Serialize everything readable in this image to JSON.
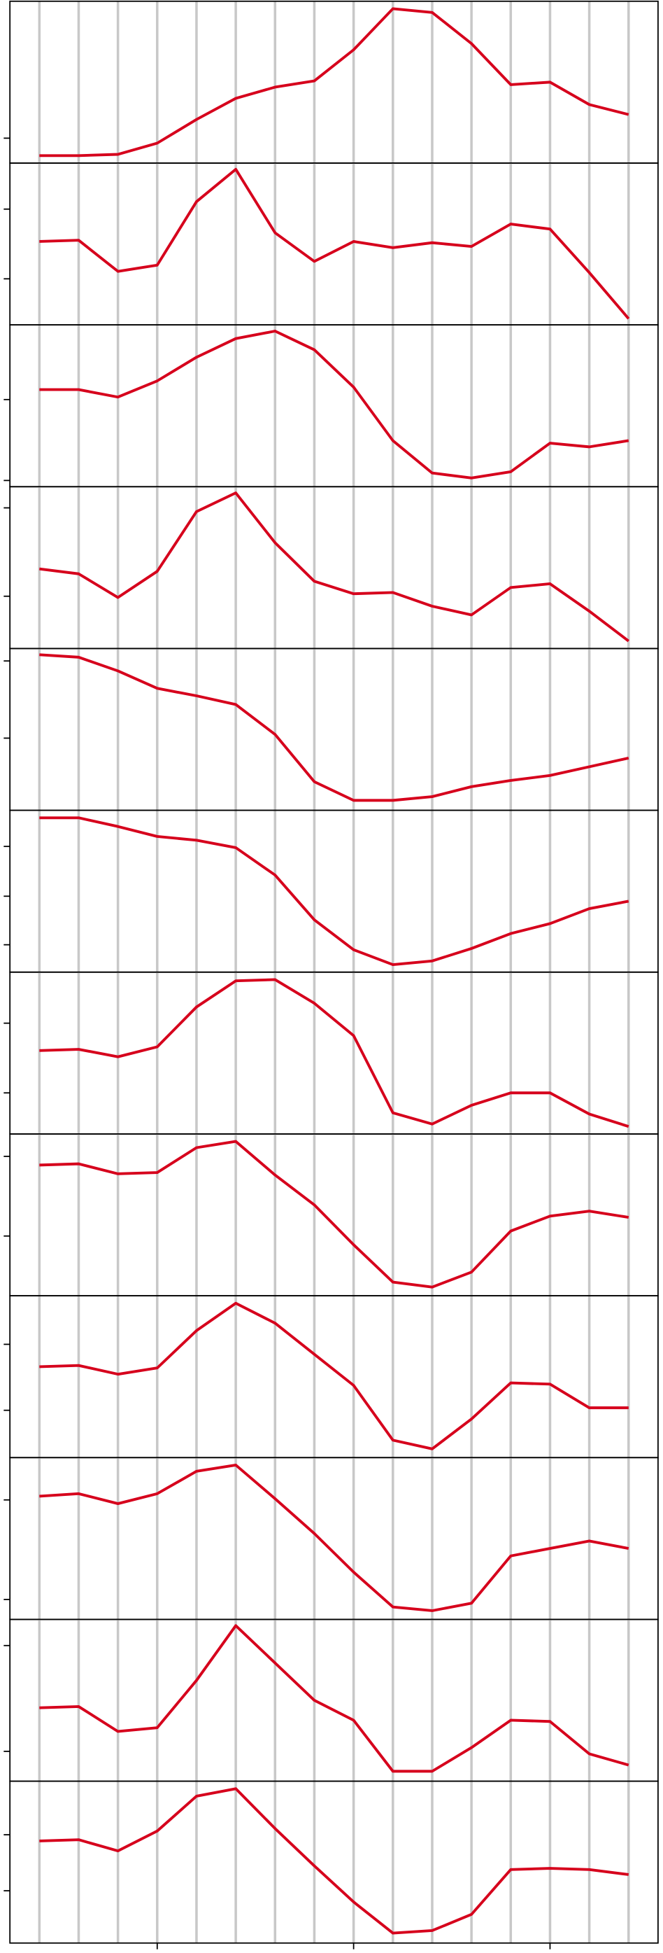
{
  "chart_data": [
    {
      "type": "line",
      "x": [
        0,
        1,
        2,
        3,
        4,
        5,
        6,
        7,
        8,
        9,
        10,
        11,
        12,
        13,
        14,
        15
      ],
      "values": [
        6,
        6,
        7,
        16,
        35,
        52,
        61,
        66,
        91,
        124,
        121,
        96,
        63,
        65,
        47,
        39
      ],
      "color": "#d6001c",
      "grid_color": "#c8c8c8",
      "xlim": [
        -0.75,
        15.75
      ],
      "ylim": [
        0,
        130
      ],
      "yticks": [
        20
      ]
    },
    {
      "type": "line",
      "x": [
        0,
        1,
        2,
        3,
        4,
        5,
        6,
        7,
        8,
        9,
        10,
        11,
        12,
        13,
        14,
        15
      ],
      "values": [
        67,
        68,
        43,
        48,
        99,
        125,
        74,
        51,
        67,
        62,
        66,
        63,
        81,
        77,
        42,
        5
      ],
      "color": "#d6001c",
      "grid_color": "#c8c8c8",
      "xlim": [
        -0.75,
        15.75
      ],
      "ylim": [
        0,
        130
      ],
      "yticks": [
        37,
        93
      ]
    },
    {
      "type": "line",
      "x": [
        0,
        1,
        2,
        3,
        4,
        5,
        6,
        7,
        8,
        9,
        10,
        11,
        12,
        13,
        14,
        15
      ],
      "values": [
        78,
        78,
        72,
        85,
        104,
        119,
        125,
        110,
        80,
        37,
        11,
        7,
        12,
        35,
        32,
        37
      ],
      "color": "#d6001c",
      "grid_color": "#c8c8c8",
      "xlim": [
        -0.75,
        15.75
      ],
      "ylim": [
        0,
        130
      ],
      "yticks": [
        5,
        70
      ]
    },
    {
      "type": "line",
      "x": [
        0,
        1,
        2,
        3,
        4,
        5,
        6,
        7,
        8,
        9,
        10,
        11,
        12,
        13,
        14,
        15
      ],
      "values": [
        64,
        60,
        41,
        62,
        110,
        125,
        85,
        54,
        44,
        45,
        34,
        27,
        49,
        52,
        30,
        6
      ],
      "color": "#d6001c",
      "grid_color": "#c8c8c8",
      "xlim": [
        -0.75,
        15.75
      ],
      "ylim": [
        0,
        130
      ],
      "yticks": [
        42,
        113
      ]
    },
    {
      "type": "line",
      "x": [
        0,
        1,
        2,
        3,
        4,
        5,
        6,
        7,
        8,
        9,
        10,
        11,
        12,
        13,
        14,
        15
      ],
      "values": [
        125,
        123,
        112,
        98,
        92,
        85,
        61,
        23,
        8,
        8,
        11,
        19,
        24,
        28,
        35,
        42
      ],
      "color": "#d6001c",
      "grid_color": "#c8c8c8",
      "xlim": [
        -0.75,
        15.75
      ],
      "ylim": [
        0,
        130
      ],
      "yticks": [
        58,
        120
      ]
    },
    {
      "type": "line",
      "x": [
        0,
        1,
        2,
        3,
        4,
        5,
        6,
        7,
        8,
        9,
        10,
        11,
        12,
        13,
        14,
        15
      ],
      "values": [
        124,
        124,
        117,
        109,
        106,
        100,
        78,
        42,
        18,
        6,
        9,
        19,
        31,
        39,
        51,
        57
      ],
      "color": "#d6001c",
      "grid_color": "#c8c8c8",
      "xlim": [
        -0.75,
        15.75
      ],
      "ylim": [
        0,
        130
      ],
      "yticks": [
        22,
        61,
        101
      ]
    },
    {
      "type": "line",
      "x": [
        0,
        1,
        2,
        3,
        4,
        5,
        6,
        7,
        8,
        9,
        10,
        11,
        12,
        13,
        14,
        15
      ],
      "values": [
        67,
        68,
        62,
        70,
        102,
        123,
        124,
        105,
        79,
        17,
        8,
        23,
        33,
        33,
        16,
        6
      ],
      "color": "#d6001c",
      "grid_color": "#c8c8c8",
      "xlim": [
        -0.75,
        15.75
      ],
      "ylim": [
        0,
        130
      ],
      "yticks": [
        33,
        89
      ]
    },
    {
      "type": "line",
      "x": [
        0,
        1,
        2,
        3,
        4,
        5,
        6,
        7,
        8,
        9,
        10,
        11,
        12,
        13,
        14,
        15
      ],
      "values": [
        105,
        106,
        98,
        99,
        119,
        124,
        97,
        73,
        41,
        11,
        7,
        19,
        52,
        64,
        68,
        63
      ],
      "color": "#d6001c",
      "grid_color": "#c8c8c8",
      "xlim": [
        -0.75,
        15.75
      ],
      "ylim": [
        0,
        130
      ],
      "yticks": [
        48,
        112
      ]
    },
    {
      "type": "line",
      "x": [
        0,
        1,
        2,
        3,
        4,
        5,
        6,
        7,
        8,
        9,
        10,
        11,
        12,
        13,
        14,
        15
      ],
      "values": [
        73,
        74,
        67,
        72,
        102,
        124,
        108,
        83,
        58,
        14,
        7,
        31,
        60,
        59,
        40,
        40
      ],
      "color": "#d6001c",
      "grid_color": "#c8c8c8",
      "xlim": [
        -0.75,
        15.75
      ],
      "ylim": [
        0,
        130
      ],
      "yticks": [
        38,
        91
      ]
    },
    {
      "type": "line",
      "x": [
        0,
        1,
        2,
        3,
        4,
        5,
        6,
        7,
        8,
        9,
        10,
        11,
        12,
        13,
        14,
        15
      ],
      "values": [
        99,
        101,
        93,
        101,
        119,
        124,
        97,
        69,
        38,
        10,
        7,
        13,
        51,
        57,
        63,
        57
      ],
      "color": "#d6001c",
      "grid_color": "#c8c8c8",
      "xlim": [
        -0.75,
        15.75
      ],
      "ylim": [
        0,
        130
      ],
      "yticks": [
        16,
        96
      ]
    },
    {
      "type": "line",
      "x": [
        0,
        1,
        2,
        3,
        4,
        5,
        6,
        7,
        8,
        9,
        10,
        11,
        12,
        13,
        14,
        15
      ],
      "values": [
        59,
        60,
        40,
        43,
        81,
        125,
        95,
        65,
        49,
        8,
        8,
        27,
        49,
        48,
        22,
        13
      ],
      "color": "#d6001c",
      "grid_color": "#c8c8c8",
      "xlim": [
        -0.75,
        15.75
      ],
      "ylim": [
        0,
        130
      ],
      "yticks": [
        24,
        109
      ]
    },
    {
      "type": "line",
      "x": [
        0,
        1,
        2,
        3,
        4,
        5,
        6,
        7,
        8,
        9,
        10,
        11,
        12,
        13,
        14,
        15
      ],
      "values": [
        82,
        83,
        74,
        90,
        118,
        124,
        92,
        62,
        33,
        8,
        10,
        23,
        59,
        60,
        59,
        55
      ],
      "color": "#d6001c",
      "grid_color": "#c8c8c8",
      "xlim": [
        -0.75,
        15.75
      ],
      "ylim": [
        0,
        130
      ],
      "yticks": [
        42,
        87
      ],
      "xticks": [
        3,
        8,
        13
      ]
    }
  ]
}
